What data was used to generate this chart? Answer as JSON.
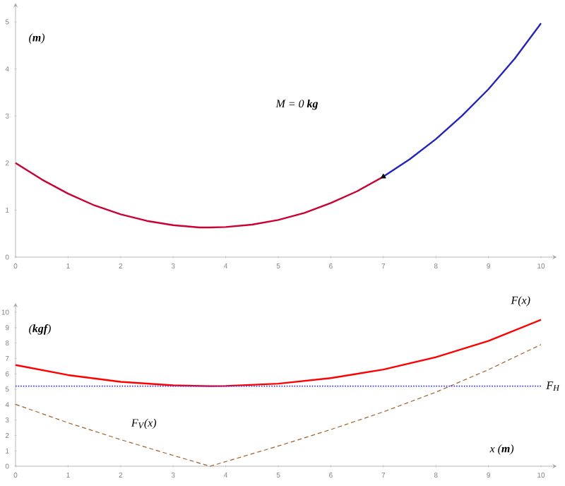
{
  "chart_data": [
    {
      "type": "line",
      "ylabel": "(**m**)",
      "annotations": [
        "M = 0 **kg**"
      ],
      "xlim": [
        0,
        10.3
      ],
      "ylim": [
        0,
        5.4
      ],
      "xticks": [
        0,
        1,
        2,
        3,
        4,
        5,
        6,
        7,
        8,
        9,
        10
      ],
      "yticks": [
        0,
        1,
        2,
        3,
        4,
        5
      ],
      "series": [
        {
          "color": "#cc0033",
          "x": [
            0,
            0.5,
            1,
            1.5,
            2,
            2.5,
            3,
            3.5,
            3.7,
            4,
            4.5,
            5,
            5.5,
            6,
            6.5,
            7
          ],
          "values": [
            2.0,
            1.65,
            1.35,
            1.1,
            0.91,
            0.77,
            0.68,
            0.63,
            0.63,
            0.64,
            0.69,
            0.79,
            0.94,
            1.15,
            1.4,
            1.71
          ]
        },
        {
          "color": "#2222cc",
          "x": [
            7,
            7.5,
            8,
            8.5,
            9,
            9.5,
            10
          ],
          "values": [
            1.71,
            2.08,
            2.51,
            3.01,
            3.57,
            4.22,
            4.97
          ]
        },
        {
          "type": "scatter",
          "color": "#000000",
          "marker": "triangle",
          "x": [
            7
          ],
          "values": [
            1.71
          ]
        }
      ]
    },
    {
      "type": "line",
      "ylabel": "(**kgf**)",
      "xlabel": "x (**m**)",
      "xlim": [
        0,
        10.3
      ],
      "ylim": [
        0,
        10.6
      ],
      "xticks": [
        0,
        1,
        2,
        3,
        4,
        5,
        6,
        7,
        8,
        9,
        10
      ],
      "yticks": [
        0,
        1,
        2,
        3,
        4,
        5,
        6,
        7,
        8,
        9,
        10
      ],
      "series": [
        {
          "name": "F(x)",
          "color": "#ff0000",
          "x": [
            0,
            1,
            2,
            3,
            3.7,
            4,
            5,
            6,
            7,
            8,
            9,
            10
          ],
          "values": [
            6.57,
            5.92,
            5.48,
            5.25,
            5.2,
            5.21,
            5.36,
            5.72,
            6.28,
            7.08,
            8.14,
            9.51
          ]
        },
        {
          "name": "F$_{V}$(x)",
          "color": "#a0622d",
          "line_style": "dashed",
          "x": [
            0,
            1,
            2,
            3,
            3.7,
            4,
            5,
            6,
            7,
            8,
            9,
            10
          ],
          "values": [
            4.02,
            2.82,
            1.73,
            0.7,
            0,
            0.3,
            1.31,
            2.38,
            3.53,
            4.81,
            6.27,
            7.9
          ]
        }
      ],
      "ref_lines": [
        {
          "axis": "y",
          "value": 5.2,
          "label": "F$_{H}$",
          "color": "#3333ff",
          "line_style": "dotted"
        }
      ]
    }
  ]
}
